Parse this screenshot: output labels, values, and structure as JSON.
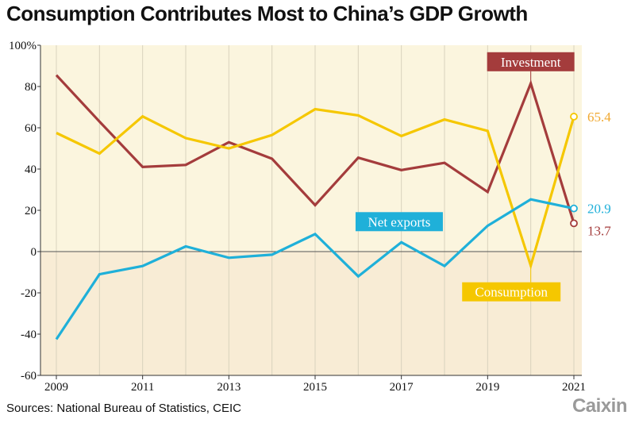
{
  "title": "Consumption Contributes Most to China’s GDP Growth",
  "source": "Sources: National Bureau of Statistics, CEIC",
  "logo_text": "Caixin",
  "colors": {
    "plot_positive_bg": "#fbf5de",
    "plot_negative_bg": "#f8ecd5",
    "investment": "#a43c3c",
    "consumption": "#f5c700",
    "net_exports": "#1fb0d9",
    "consumption_value": "#f0a830"
  },
  "chart_data": {
    "type": "line",
    "x": [
      2009,
      2010,
      2011,
      2012,
      2013,
      2014,
      2015,
      2016,
      2017,
      2018,
      2019,
      2020,
      2021
    ],
    "xlim": [
      2009,
      2021
    ],
    "ylim": [
      -60,
      100
    ],
    "xticks": [
      "2009",
      "2011",
      "2013",
      "2015",
      "2017",
      "2019",
      "2021"
    ],
    "yticks": [
      "100%",
      "80",
      "60",
      "40",
      "20",
      "0",
      "-20",
      "-40",
      "-60"
    ],
    "series": [
      {
        "key": "investment",
        "name": "Investment",
        "values": [
          85.5,
          63,
          41,
          42,
          53,
          45,
          22.5,
          45.5,
          39.5,
          43,
          28.9,
          81.5,
          13.7
        ],
        "end_label": "13.7"
      },
      {
        "key": "consumption",
        "name": "Consumption",
        "values": [
          57.5,
          47.5,
          65.5,
          55,
          50,
          56.5,
          69,
          66,
          56,
          64,
          58.5,
          -6.8,
          65.4
        ],
        "end_label": "65.4"
      },
      {
        "key": "net_exports",
        "name": "Net exports",
        "values": [
          -42.5,
          -11,
          -7,
          2.5,
          -3,
          -1.5,
          8.5,
          -12,
          4.5,
          -7,
          12.5,
          25.3,
          20.9
        ],
        "end_label": "20.9"
      }
    ]
  }
}
